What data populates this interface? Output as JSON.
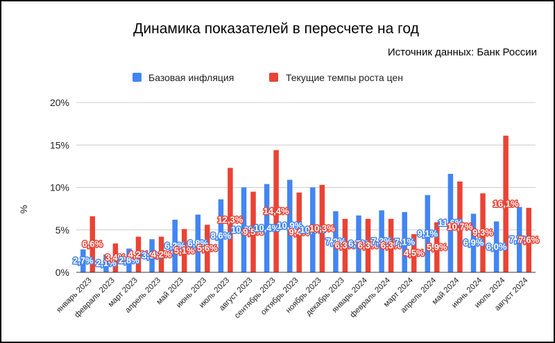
{
  "chart_data": {
    "type": "bar",
    "title": "Динамика показателей в пересчете на год",
    "subtitle": "Источник данных: Банк России",
    "xlabel": "",
    "ylabel": "%",
    "ylim": [
      0,
      20
    ],
    "yticks": [
      "0%",
      "5%",
      "10%",
      "15%",
      "20%"
    ],
    "grid": true,
    "legend_position": "top",
    "categories": [
      "январь 2023",
      "февраль 2023",
      "март 2023",
      "апрель 2023",
      "май 2023",
      "июнь 2023",
      "июль 2023",
      "август 2023",
      "сентябрь 2023",
      "октябрь 2023",
      "ноябрь 2023",
      "декабрь 2023",
      "январь 2024",
      "февраль 2024",
      "март 2024",
      "апрель 2024",
      "май 2024",
      "июнь 2024",
      "июль 2024",
      "август 2024"
    ],
    "series": [
      {
        "name": "Базовая инфляция",
        "color": "#4285f4",
        "values": [
          2.7,
          2.1,
          2.8,
          3.9,
          6.2,
          6.8,
          8.6,
          10.0,
          10.4,
          10.9,
          10.0,
          7.2,
          6.7,
          7.3,
          7.1,
          9.1,
          11.6,
          6.9,
          6.0,
          7.7
        ],
        "labels": [
          "2,7%",
          "2,1%",
          "2,8%",
          "3,9%",
          "6,2%",
          "6,8%",
          "8,6%",
          "10,0%",
          "10,4%",
          "10,9%",
          "10,0%",
          "7,2%",
          "6,7%",
          "7,3%",
          "7,1%",
          "9,1%",
          "11,6%",
          "6,9%",
          "6,0%",
          "7,7%"
        ]
      },
      {
        "name": "Текущие темпы роста цен",
        "color": "#ea4335",
        "values": [
          6.6,
          3.4,
          4.2,
          4.2,
          5.1,
          5.6,
          12.3,
          9.5,
          14.4,
          9.4,
          10.3,
          6.3,
          6.3,
          6.3,
          4.5,
          5.9,
          10.7,
          9.3,
          16.1,
          7.6
        ],
        "labels": [
          "6,6%",
          "3,4%",
          "4,2%",
          "4,2%",
          "5,1%",
          "5,6%",
          "12,3%",
          "9,5%",
          "14,4%",
          "9,4%",
          "10,3%",
          "6,3%",
          "6,3%",
          "6,3%",
          "4,5%",
          "5,9%",
          "10,7%",
          "9,3%",
          "16,1%",
          "7,6%"
        ]
      }
    ]
  }
}
